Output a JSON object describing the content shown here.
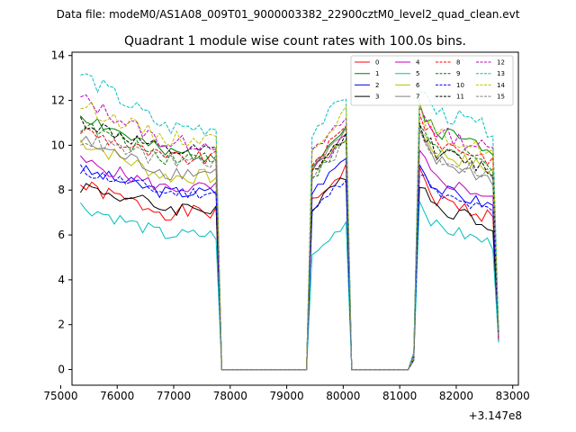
{
  "header_text": "Data file: modeM0/AS1A08_009T01_9000003382_22900cztM0_level2_quad_clean.evt",
  "chart_data": {
    "type": "line",
    "title": "Quadrant 1 module wise count rates with 100.0s bins.",
    "xlabel": "",
    "ylabel": "",
    "x_offset_label": "+3.147e8",
    "xlim": [
      75200,
      83100
    ],
    "ylim": [
      -0.7,
      14.15
    ],
    "x_ticks": [
      75000,
      76000,
      77000,
      78000,
      79000,
      80000,
      81000,
      82000,
      83000
    ],
    "y_ticks": [
      0,
      2,
      4,
      6,
      8,
      10,
      12,
      14
    ],
    "x_tick_labels": [
      "75000",
      "76000",
      "77000",
      "78000",
      "79000",
      "80000",
      "81000",
      "82000",
      "83000"
    ],
    "y_tick_labels": [
      "0",
      "2",
      "4",
      "6",
      "8",
      "10",
      "12",
      "14"
    ],
    "grid": false,
    "legend_position": "top-right",
    "segments": [
      {
        "start": 75350,
        "end": 77750
      },
      {
        "start": 79450,
        "end": 80050
      },
      {
        "start": 81250,
        "end": 82750
      }
    ],
    "series": [
      {
        "name": "0",
        "color": "#ff0000",
        "dash": false,
        "level": 7.0,
        "spread": 0.35,
        "start_boost": 1.2,
        "peak2": 9.0,
        "peak3": 7.9,
        "seed": 1
      },
      {
        "name": "1",
        "color": "#008000",
        "dash": false,
        "level": 9.6,
        "spread": 0.35,
        "start_boost": 1.8,
        "peak2": 10.8,
        "peak3": 11.0,
        "seed": 2
      },
      {
        "name": "2",
        "color": "#0000ff",
        "dash": false,
        "level": 7.9,
        "spread": 0.3,
        "start_boost": 1.0,
        "peak2": 9.5,
        "peak3": 8.4,
        "seed": 3
      },
      {
        "name": "3",
        "color": "#000000",
        "dash": false,
        "level": 7.2,
        "spread": 0.35,
        "start_boost": 1.0,
        "peak2": 8.7,
        "peak3": 7.6,
        "seed": 4
      },
      {
        "name": "4",
        "color": "#bf00bf",
        "dash": false,
        "level": 8.1,
        "spread": 0.3,
        "start_boost": 1.2,
        "peak2": 10.4,
        "peak3": 8.8,
        "seed": 5
      },
      {
        "name": "5",
        "color": "#00bfbf",
        "dash": false,
        "level": 6.0,
        "spread": 0.3,
        "start_boost": 1.3,
        "peak2": 6.6,
        "peak3": 6.7,
        "seed": 6
      },
      {
        "name": "6",
        "color": "#bfbf00",
        "dash": false,
        "level": 8.6,
        "spread": 0.35,
        "start_boost": 1.6,
        "peak2": 10.4,
        "peak3": 10.0,
        "seed": 7
      },
      {
        "name": "7",
        "color": "#808080",
        "dash": false,
        "level": 8.8,
        "spread": 0.35,
        "start_boost": 1.4,
        "peak2": 10.6,
        "peak3": 9.6,
        "seed": 8
      },
      {
        "name": "8",
        "color": "#ff0000",
        "dash": true,
        "level": 9.4,
        "spread": 0.35,
        "start_boost": 1.3,
        "peak2": 10.8,
        "peak3": 10.5,
        "seed": 9
      },
      {
        "name": "9",
        "color": "#008000",
        "dash": true,
        "level": 9.5,
        "spread": 0.35,
        "start_boost": 1.4,
        "peak2": 10.2,
        "peak3": 10.2,
        "seed": 10
      },
      {
        "name": "10",
        "color": "#0000ff",
        "dash": true,
        "level": 7.9,
        "spread": 0.3,
        "start_boost": 1.0,
        "peak2": 8.6,
        "peak3": 8.1,
        "seed": 11
      },
      {
        "name": "11",
        "color": "#000000",
        "dash": true,
        "level": 9.7,
        "spread": 0.35,
        "start_boost": 1.4,
        "peak2": 10.4,
        "peak3": 10.0,
        "seed": 12
      },
      {
        "name": "12",
        "color": "#bf00bf",
        "dash": true,
        "level": 10.1,
        "spread": 0.35,
        "start_boost": 2.0,
        "peak2": 11.2,
        "peak3": 10.9,
        "seed": 13
      },
      {
        "name": "13",
        "color": "#00bfbf",
        "dash": true,
        "level": 10.8,
        "spread": 0.4,
        "start_boost": 2.4,
        "peak2": 12.2,
        "peak3": 11.8,
        "seed": 14
      },
      {
        "name": "14",
        "color": "#bfbf00",
        "dash": true,
        "level": 10.3,
        "spread": 0.35,
        "start_boost": 1.5,
        "peak2": 11.5,
        "peak3": 10.8,
        "seed": 15
      },
      {
        "name": "15",
        "color": "#808080",
        "dash": true,
        "level": 9.3,
        "spread": 0.35,
        "start_boost": 1.0,
        "peak2": 10.1,
        "peak3": 9.8,
        "seed": 16
      }
    ]
  }
}
